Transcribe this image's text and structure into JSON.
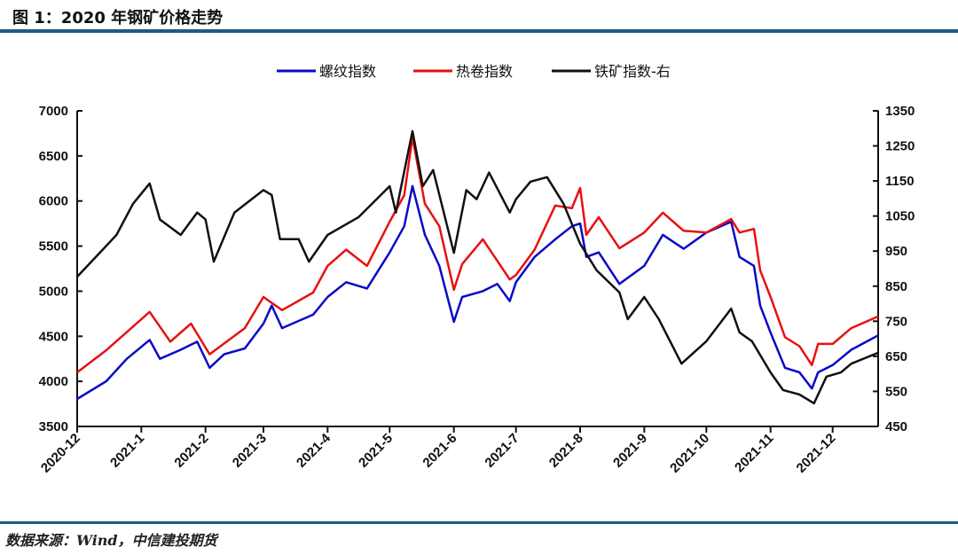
{
  "title": "图 1：2020 年钢矿价格走势",
  "source": "数据来源：Wind，中信建投期货",
  "chart_data": {
    "type": "line",
    "title": "",
    "xlabel": "",
    "ylabel": "",
    "x_ticks": [
      "2020-12",
      "2021-1",
      "2021-2",
      "2021-3",
      "2021-4",
      "2021-5",
      "2021-6",
      "2021-7",
      "2021-8",
      "2021-9",
      "2021-10",
      "2021-11",
      "2021-12"
    ],
    "x_range": [
      "2020-12-01",
      "2021-12-23"
    ],
    "ylim_left": [
      3500,
      7000
    ],
    "yticks_left": [
      3500,
      4000,
      4500,
      5000,
      5500,
      6000,
      6500,
      7000
    ],
    "ylim_right": [
      450,
      1350
    ],
    "yticks_right": [
      450,
      550,
      650,
      750,
      850,
      950,
      1050,
      1150,
      1250,
      1350
    ],
    "grid": false,
    "legend_position": "top",
    "series": [
      {
        "name": "螺纹指数",
        "color": "#0a0ac8",
        "axis": "left",
        "points": [
          [
            "2020-12-01",
            3805
          ],
          [
            "2020-12-15",
            4000
          ],
          [
            "2020-12-25",
            4250
          ],
          [
            "2021-01-05",
            4460
          ],
          [
            "2021-01-10",
            4250
          ],
          [
            "2021-01-20",
            4350
          ],
          [
            "2021-01-28",
            4440
          ],
          [
            "2021-02-03",
            4150
          ],
          [
            "2021-02-10",
            4300
          ],
          [
            "2021-02-20",
            4365
          ],
          [
            "2021-03-01",
            4640
          ],
          [
            "2021-03-05",
            4840
          ],
          [
            "2021-03-10",
            4590
          ],
          [
            "2021-03-25",
            4740
          ],
          [
            "2021-04-01",
            4935
          ],
          [
            "2021-04-10",
            5100
          ],
          [
            "2021-04-20",
            5030
          ],
          [
            "2021-05-01",
            5430
          ],
          [
            "2021-05-08",
            5720
          ],
          [
            "2021-05-12",
            6165
          ],
          [
            "2021-05-18",
            5625
          ],
          [
            "2021-05-25",
            5280
          ],
          [
            "2021-06-01",
            4660
          ],
          [
            "2021-06-05",
            4935
          ],
          [
            "2021-06-15",
            5000
          ],
          [
            "2021-06-22",
            5080
          ],
          [
            "2021-06-28",
            4890
          ],
          [
            "2021-07-01",
            5100
          ],
          [
            "2021-07-10",
            5380
          ],
          [
            "2021-07-20",
            5575
          ],
          [
            "2021-07-28",
            5720
          ],
          [
            "2021-08-01",
            5750
          ],
          [
            "2021-08-04",
            5380
          ],
          [
            "2021-08-10",
            5430
          ],
          [
            "2021-08-20",
            5080
          ],
          [
            "2021-09-01",
            5280
          ],
          [
            "2021-09-10",
            5625
          ],
          [
            "2021-09-20",
            5470
          ],
          [
            "2021-10-01",
            5650
          ],
          [
            "2021-10-13",
            5770
          ],
          [
            "2021-10-17",
            5380
          ],
          [
            "2021-10-24",
            5280
          ],
          [
            "2021-10-27",
            4840
          ],
          [
            "2021-11-01",
            4540
          ],
          [
            "2021-11-08",
            4150
          ],
          [
            "2021-11-15",
            4100
          ],
          [
            "2021-11-21",
            3920
          ],
          [
            "2021-11-24",
            4100
          ],
          [
            "2021-12-01",
            4180
          ],
          [
            "2021-12-10",
            4350
          ],
          [
            "2021-12-23",
            4510
          ]
        ]
      },
      {
        "name": "热卷指数",
        "color": "#e81010",
        "axis": "left",
        "points": [
          [
            "2020-12-01",
            4100
          ],
          [
            "2020-12-15",
            4345
          ],
          [
            "2021-01-05",
            4770
          ],
          [
            "2021-01-15",
            4440
          ],
          [
            "2021-01-25",
            4640
          ],
          [
            "2021-02-03",
            4300
          ],
          [
            "2021-02-20",
            4590
          ],
          [
            "2021-03-01",
            4935
          ],
          [
            "2021-03-10",
            4790
          ],
          [
            "2021-03-25",
            4985
          ],
          [
            "2021-04-01",
            5280
          ],
          [
            "2021-04-10",
            5460
          ],
          [
            "2021-04-20",
            5280
          ],
          [
            "2021-05-01",
            5770
          ],
          [
            "2021-05-08",
            6065
          ],
          [
            "2021-05-12",
            6705
          ],
          [
            "2021-05-18",
            5970
          ],
          [
            "2021-05-25",
            5720
          ],
          [
            "2021-06-01",
            5015
          ],
          [
            "2021-06-05",
            5300
          ],
          [
            "2021-06-15",
            5575
          ],
          [
            "2021-06-28",
            5130
          ],
          [
            "2021-07-01",
            5180
          ],
          [
            "2021-07-10",
            5460
          ],
          [
            "2021-07-20",
            5950
          ],
          [
            "2021-07-28",
            5920
          ],
          [
            "2021-08-01",
            6145
          ],
          [
            "2021-08-04",
            5625
          ],
          [
            "2021-08-10",
            5820
          ],
          [
            "2021-08-20",
            5475
          ],
          [
            "2021-09-01",
            5650
          ],
          [
            "2021-09-10",
            5870
          ],
          [
            "2021-09-20",
            5670
          ],
          [
            "2021-10-01",
            5650
          ],
          [
            "2021-10-13",
            5800
          ],
          [
            "2021-10-17",
            5650
          ],
          [
            "2021-10-24",
            5690
          ],
          [
            "2021-10-27",
            5230
          ],
          [
            "2021-11-01",
            4935
          ],
          [
            "2021-11-08",
            4490
          ],
          [
            "2021-11-15",
            4390
          ],
          [
            "2021-11-21",
            4180
          ],
          [
            "2021-11-24",
            4415
          ],
          [
            "2021-12-01",
            4415
          ],
          [
            "2021-12-10",
            4590
          ],
          [
            "2021-12-23",
            4720
          ]
        ]
      },
      {
        "name": "铁矿指数-右",
        "color": "#111111",
        "axis": "right",
        "points": [
          [
            "2020-12-01",
            877
          ],
          [
            "2020-12-10",
            933
          ],
          [
            "2020-12-20",
            996
          ],
          [
            "2020-12-28",
            1085
          ],
          [
            "2021-01-05",
            1143
          ],
          [
            "2021-01-10",
            1040
          ],
          [
            "2021-01-20",
            996
          ],
          [
            "2021-01-28",
            1060
          ],
          [
            "2021-02-01",
            1040
          ],
          [
            "2021-02-05",
            920
          ],
          [
            "2021-02-15",
            1060
          ],
          [
            "2021-03-01",
            1124
          ],
          [
            "2021-03-05",
            1110
          ],
          [
            "2021-03-09",
            984
          ],
          [
            "2021-03-18",
            984
          ],
          [
            "2021-03-23",
            920
          ],
          [
            "2021-04-01",
            996
          ],
          [
            "2021-04-16",
            1047
          ],
          [
            "2021-05-01",
            1135
          ],
          [
            "2021-05-04",
            1060
          ],
          [
            "2021-05-12",
            1292
          ],
          [
            "2021-05-17",
            1135
          ],
          [
            "2021-05-22",
            1181
          ],
          [
            "2021-06-01",
            945
          ],
          [
            "2021-06-07",
            1124
          ],
          [
            "2021-06-12",
            1098
          ],
          [
            "2021-06-18",
            1174
          ],
          [
            "2021-06-28",
            1060
          ],
          [
            "2021-07-01",
            1098
          ],
          [
            "2021-07-08",
            1148
          ],
          [
            "2021-07-16",
            1161
          ],
          [
            "2021-07-24",
            1085
          ],
          [
            "2021-08-01",
            971
          ],
          [
            "2021-08-09",
            895
          ],
          [
            "2021-08-20",
            832
          ],
          [
            "2021-08-24",
            756
          ],
          [
            "2021-09-01",
            819
          ],
          [
            "2021-09-08",
            756
          ],
          [
            "2021-09-19",
            629
          ],
          [
            "2021-10-01",
            693
          ],
          [
            "2021-10-13",
            786
          ],
          [
            "2021-10-17",
            718
          ],
          [
            "2021-10-23",
            693
          ],
          [
            "2021-11-01",
            604
          ],
          [
            "2021-11-07",
            554
          ],
          [
            "2021-11-15",
            541
          ],
          [
            "2021-11-22",
            516
          ],
          [
            "2021-11-28",
            592
          ],
          [
            "2021-12-05",
            604
          ],
          [
            "2021-12-10",
            629
          ],
          [
            "2021-12-23",
            660
          ]
        ]
      }
    ]
  }
}
